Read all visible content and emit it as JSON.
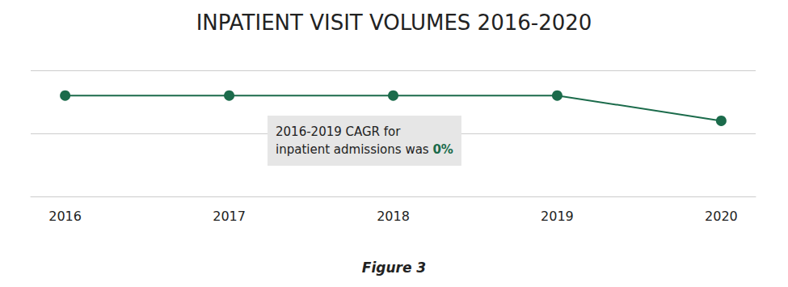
{
  "chart_data": {
    "type": "line",
    "title": "INPATIENT VISIT VOLUMES 2016-2020",
    "caption": "Figure 3",
    "x": [
      2016,
      2017,
      2018,
      2019,
      2020
    ],
    "values": [
      1.6,
      1.6,
      1.6,
      1.6,
      1.2
    ],
    "color": "#1b6b4b",
    "marker": "circle",
    "xlim": [
      2015.79,
      2020.21
    ],
    "xticks": [
      2016,
      2017,
      2018,
      2019,
      2020
    ],
    "ylim": [
      0,
      2
    ],
    "yticks": [
      0,
      1,
      2
    ],
    "grid": true,
    "tick_labels": "x",
    "annotation": {
      "lines": [
        "2016-2019 CAGR for",
        "inpatient admissions was"
      ],
      "highlight": "0%"
    }
  }
}
